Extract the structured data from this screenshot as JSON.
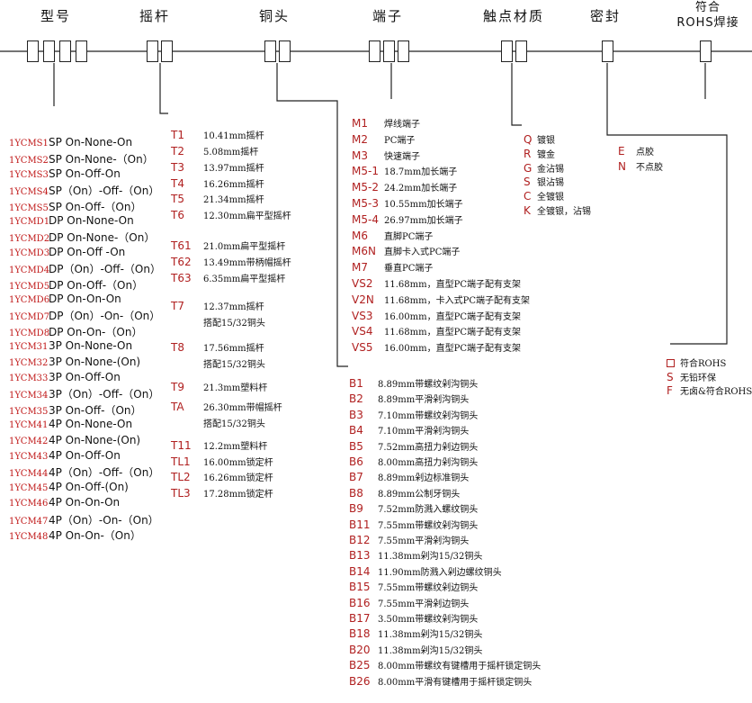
{
  "headers": [
    {
      "id": "model",
      "label": "型号"
    },
    {
      "id": "lever",
      "label": "摇杆"
    },
    {
      "id": "bushing",
      "label": "铜头"
    },
    {
      "id": "terminal",
      "label": "端子"
    },
    {
      "id": "contact",
      "label": "触点材质"
    },
    {
      "id": "seal",
      "label": "密封"
    },
    {
      "id": "rohs",
      "label_line1": "符合",
      "label_line2": "ROHS焊接"
    }
  ],
  "models": [
    {
      "code": "1YCMS1",
      "desc": "SP On-None-On"
    },
    {
      "code": "1YCMS2",
      "desc": "SP On-None-（On）"
    },
    {
      "code": "1YCMS3",
      "desc": "SP On-Off-On"
    },
    {
      "code": "1YCMS4",
      "desc": "SP（On）-Off-（On）"
    },
    {
      "code": "1YCMS5",
      "desc": "SP On-Off-（On）"
    },
    {
      "code": "1YCMD1",
      "desc": "DP On-None-On"
    },
    {
      "code": "1YCMD2",
      "desc": "DP On-None-（On）"
    },
    {
      "code": "1YCMD3",
      "desc": "DP On-Off -On"
    },
    {
      "code": "1YCMD4",
      "desc": "DP（On）-Off-（On）"
    },
    {
      "code": "1YCMD5",
      "desc": "DP On-Off-（On）"
    },
    {
      "code": "1YCMD6",
      "desc": "DP On-On-On"
    },
    {
      "code": "1YCMD7",
      "desc": "DP（On）-On-（On）"
    },
    {
      "code": "1YCMD8",
      "desc": "DP On-On-（On）"
    },
    {
      "code": "1YCM31",
      "desc": "3P On-None-On"
    },
    {
      "code": "1YCM32",
      "desc": "3P On-None-(On)"
    },
    {
      "code": "1YCM33",
      "desc": "3P On-Off-On"
    },
    {
      "code": "1YCM34",
      "desc": "3P（On）-Off-（On）"
    },
    {
      "code": "1YCM35",
      "desc": "3P On-Off-（On）"
    },
    {
      "code": "1YCM41",
      "desc": "4P On-None-On"
    },
    {
      "code": "1YCM42",
      "desc": "4P On-None-(On)"
    },
    {
      "code": "1YCM43",
      "desc": "4P On-Off-On"
    },
    {
      "code": "1YCM44",
      "desc": "4P（On）-Off-（On）"
    },
    {
      "code": "1YCM45",
      "desc": "4P On-Off-(On)"
    },
    {
      "code": "1YCM46",
      "desc": "4P On-On-On"
    },
    {
      "code": "1YCM47",
      "desc": "4P（On）-On-（On）"
    },
    {
      "code": "1YCM48",
      "desc": "4P On-On-（On）"
    }
  ],
  "levers": [
    {
      "code": "T1",
      "desc": "10.41mm摇杆"
    },
    {
      "code": "T2",
      "desc": "5.08mm摇杆"
    },
    {
      "code": "T3",
      "desc": "13.97mm摇杆"
    },
    {
      "code": "T4",
      "desc": "16.26mm摇杆"
    },
    {
      "code": "T5",
      "desc": "21.34mm摇杆"
    },
    {
      "code": "T6",
      "desc": "12.30mm扁平型摇杆"
    },
    {
      "code": "T61",
      "desc": "21.0mm扁平型摇杆"
    },
    {
      "code": "T62",
      "desc": "13.49mm带柄帽摇杆"
    },
    {
      "code": "T63",
      "desc": "6.35mm扁平型摇杆"
    },
    {
      "code": "T7",
      "desc": "12.37mm摇杆",
      "desc2": "搭配15/32铜头"
    },
    {
      "code": "T8",
      "desc": "17.56mm摇杆",
      "desc2": "搭配15/32铜头"
    },
    {
      "code": "T9",
      "desc": "21.3mm塑料杆"
    },
    {
      "code": "TA",
      "desc": "26.30mm带帽摇杆",
      "desc2": "搭配15/32铜头"
    },
    {
      "code": "T11",
      "desc": "12.2mm塑料杆"
    },
    {
      "code": "TL1",
      "desc": "16.00mm锁定杆"
    },
    {
      "code": "TL2",
      "desc": "16.26mm锁定杆"
    },
    {
      "code": "TL3",
      "desc": "17.28mm锁定杆"
    }
  ],
  "terminals": [
    {
      "code": "M1",
      "desc": "焊线端子"
    },
    {
      "code": "M2",
      "desc": "PC端子"
    },
    {
      "code": "M3",
      "desc": "快速端子"
    },
    {
      "code": "M5-1",
      "desc": "18.7mm加长端子"
    },
    {
      "code": "M5-2",
      "desc": "24.2mm加长端子"
    },
    {
      "code": "M5-3",
      "desc": "10.55mm加长端子"
    },
    {
      "code": "M5-4",
      "desc": "26.97mm加长端子"
    },
    {
      "code": "M6",
      "desc": "直脚PC端子"
    },
    {
      "code": "M6N",
      "desc": "直脚卡入式PC端子"
    },
    {
      "code": "M7",
      "desc": "垂直PC端子"
    },
    {
      "code": "VS2",
      "desc": "11.68mm，直型PC端子配有支架"
    },
    {
      "code": "V2N",
      "desc": "11.68mm，卡入式PC端子配有支架"
    },
    {
      "code": "VS3",
      "desc": "16.00mm，直型PC端子配有支架"
    },
    {
      "code": "VS4",
      "desc": "11.68mm，直型PC端子配有支架"
    },
    {
      "code": "VS5",
      "desc": "16.00mm，直型PC端子配有支架"
    }
  ],
  "contacts": [
    {
      "code": "Q",
      "desc": "镀银"
    },
    {
      "code": "R",
      "desc": "镀金"
    },
    {
      "code": "G",
      "desc": "金沾锡"
    },
    {
      "code": "S",
      "desc": "银沾锡"
    },
    {
      "code": "C",
      "desc": "全镀银"
    },
    {
      "code": "K",
      "desc": "全镀银，沾锡"
    }
  ],
  "seals": [
    {
      "code": "E",
      "desc": "点胶"
    },
    {
      "code": "N",
      "desc": "不点胶"
    }
  ],
  "bushings": [
    {
      "code": "B1",
      "desc": "8.89mm带螺纹剁沟铜头"
    },
    {
      "code": "B2",
      "desc": "8.89mm平滑剁沟铜头"
    },
    {
      "code": "B3",
      "desc": "7.10mm带螺纹剁沟铜头"
    },
    {
      "code": "B4",
      "desc": "7.10mm平滑剁沟铜头"
    },
    {
      "code": "B5",
      "desc": "7.52mm高扭力剁边铜头"
    },
    {
      "code": "B6",
      "desc": "8.00mm高扭力剁沟铜头"
    },
    {
      "code": "B7",
      "desc": "8.89mm剁边标准铜头"
    },
    {
      "code": "B8",
      "desc": "8.89mm公制牙铜头"
    },
    {
      "code": "B9",
      "desc": "7.52mm防溅入螺纹铜头"
    },
    {
      "code": "B11",
      "desc": "7.55mm带螺纹剁沟铜头"
    },
    {
      "code": "B12",
      "desc": "7.55mm平滑剁沟铜头"
    },
    {
      "code": "B13",
      "desc": "11.38mm剁沟15/32铜头"
    },
    {
      "code": "B14",
      "desc": "11.90mm防溅入剁边螺纹铜头"
    },
    {
      "code": "B15",
      "desc": "7.55mm带螺纹剁边铜头"
    },
    {
      "code": "B16",
      "desc": "7.55mm平滑剁边铜头"
    },
    {
      "code": "B17",
      "desc": "3.50mm带螺纹剁沟铜头"
    },
    {
      "code": "B18",
      "desc": "11.38mm剁沟15/32铜头"
    },
    {
      "code": "B20",
      "desc": "11.38mm剁沟15/32铜头"
    },
    {
      "code": "B25",
      "desc": "8.00mm带螺纹有键槽用于摇杆锁定铜头"
    },
    {
      "code": "B26",
      "desc": "8.00mm平滑有键槽用于摇杆锁定铜头"
    }
  ],
  "rohs": [
    {
      "code": "",
      "desc": "符合ROHS"
    },
    {
      "code": "S",
      "desc": "无铅环保"
    },
    {
      "code": "F",
      "desc": "无卤&符合ROHS"
    }
  ]
}
